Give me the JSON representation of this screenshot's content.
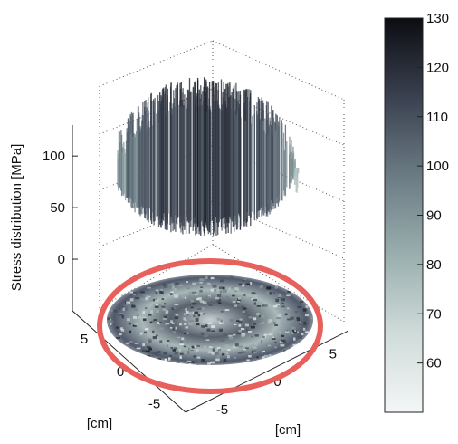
{
  "chart_data": {
    "type": "surface3d",
    "zlabel": "Stress distribution [MPa]",
    "xlabel": "[cm]",
    "ylabel": "[cm]",
    "z_ticks": [
      0,
      50,
      100
    ],
    "zlim": [
      -50,
      130
    ],
    "y_ticks": [
      5,
      0,
      -5
    ],
    "x_ticks": [
      -5,
      0,
      5
    ],
    "colorbar": {
      "min": 50,
      "max": 130,
      "ticks": [
        60,
        70,
        80,
        90,
        100,
        110,
        120,
        130
      ]
    },
    "highlight": {
      "shape": "ellipse",
      "color": "#e8605b",
      "target": "projection-disc"
    }
  }
}
